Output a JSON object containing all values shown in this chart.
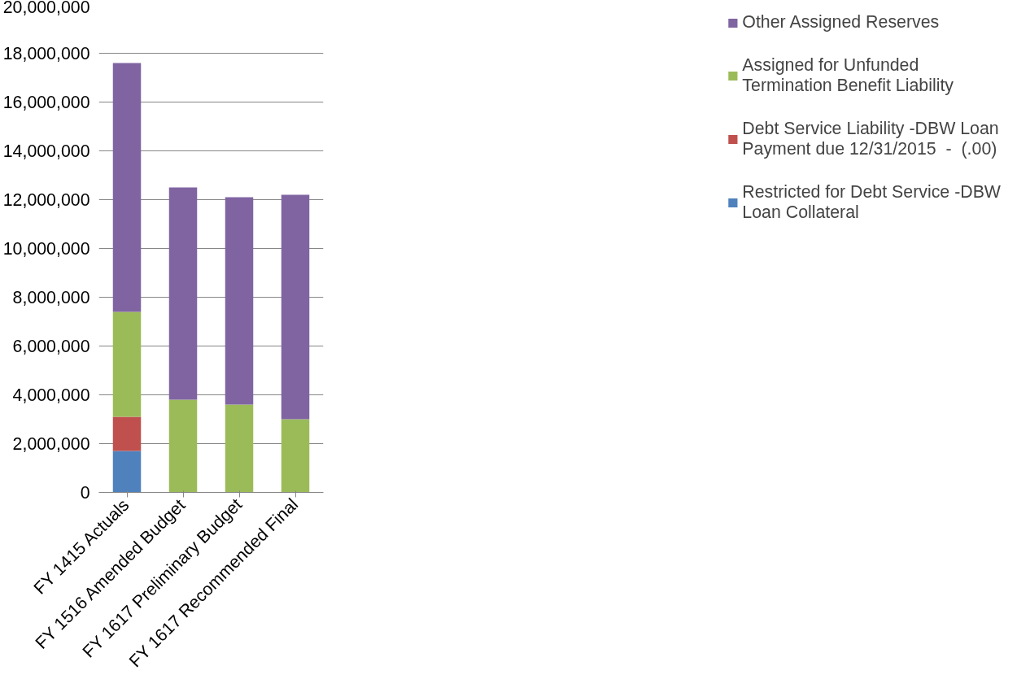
{
  "chart_data": {
    "type": "bar",
    "stacked": true,
    "categories": [
      "FY 1415 Actuals",
      "FY 1516 Amended Budget",
      "FY 1617 Preliminary Budget",
      "FY 1617 Recommended Final"
    ],
    "series": [
      {
        "name": "Restricted for Debt Service -DBW Loan Collateral",
        "color": "#4f81bd",
        "values": [
          1700000,
          0,
          0,
          0
        ]
      },
      {
        "name": "Debt Service Liability -DBW Loan Payment due 12/31/2015  -  (.00)",
        "color": "#c0504d",
        "values": [
          1400000,
          0,
          0,
          0
        ]
      },
      {
        "name": "Assigned for Unfunded Termination Benefit Liability",
        "color": "#9bbb59",
        "values": [
          4300000,
          3800000,
          3600000,
          3000000
        ]
      },
      {
        "name": "Other Assigned Reserves",
        "color": "#8064a2",
        "values": [
          10200000,
          8700000,
          8500000,
          9200000
        ]
      }
    ],
    "ylim": [
      0,
      20000000
    ],
    "yticks": [
      {
        "value": 0,
        "label": "0"
      },
      {
        "value": 2000000,
        "label": "2,000,000"
      },
      {
        "value": 4000000,
        "label": "4,000,000"
      },
      {
        "value": 6000000,
        "label": "6,000,000"
      },
      {
        "value": 8000000,
        "label": "8,000,000"
      },
      {
        "value": 10000000,
        "label": "10,000,000"
      },
      {
        "value": 12000000,
        "label": "12,000,000"
      },
      {
        "value": 14000000,
        "label": "14,000,000"
      },
      {
        "value": 16000000,
        "label": "16,000,000"
      },
      {
        "value": 18000000,
        "label": "18,000,000"
      },
      {
        "value": 20000000,
        "label": "20,000,000"
      }
    ],
    "grid": "y",
    "legend": "right"
  }
}
